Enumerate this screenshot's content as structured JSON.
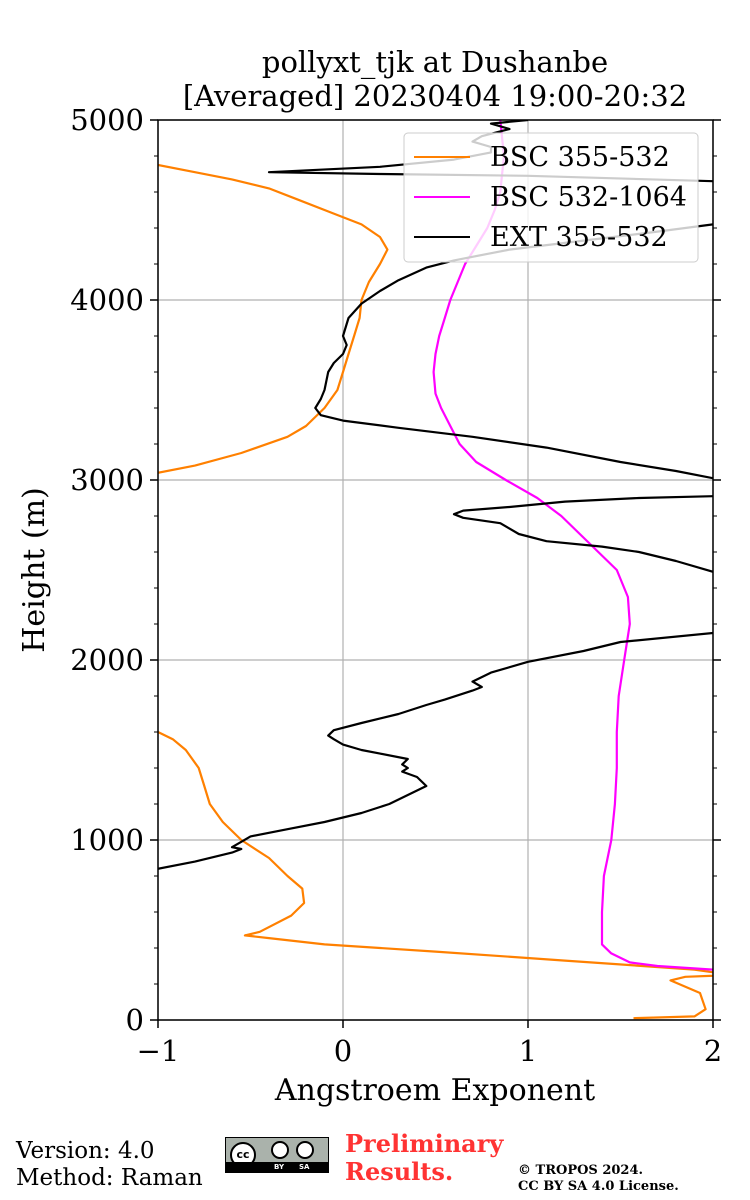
{
  "chart_data": {
    "type": "line",
    "title": "pollyxt_tjk at Dushanbe",
    "subtitle": "[Averaged] 20230404 19:00-20:32",
    "xlabel": "Angstroem Exponent",
    "ylabel": "Height (m)",
    "xlim": [
      -1,
      2
    ],
    "ylim": [
      0,
      5000
    ],
    "xticks": [
      "−1",
      "0",
      "1",
      "2"
    ],
    "yticks": [
      "0",
      "1000",
      "2000",
      "3000",
      "4000",
      "5000"
    ],
    "grid": true,
    "legend_position": "top-right",
    "series": [
      {
        "name": "BSC 355-532",
        "color": "#ff8000",
        "points": [
          [
            1.57,
            10
          ],
          [
            1.9,
            20
          ],
          [
            1.96,
            60
          ],
          [
            1.93,
            150
          ],
          [
            1.77,
            220
          ],
          [
            1.85,
            240
          ],
          [
            2.1,
            250
          ],
          [
            1.9,
            280
          ],
          [
            1.2,
            330
          ],
          [
            0.5,
            380
          ],
          [
            -0.1,
            420
          ],
          [
            -0.4,
            455
          ],
          [
            -0.53,
            470
          ],
          [
            -0.45,
            490
          ],
          [
            -0.28,
            580
          ],
          [
            -0.21,
            650
          ],
          [
            -0.22,
            730
          ],
          [
            -0.3,
            800
          ],
          [
            -0.4,
            900
          ],
          [
            -0.55,
            1000
          ],
          [
            -0.65,
            1100
          ],
          [
            -0.72,
            1200
          ],
          [
            -0.75,
            1300
          ],
          [
            -0.78,
            1400
          ],
          [
            -0.85,
            1500
          ],
          [
            -0.92,
            1560
          ],
          [
            -1.0,
            1600
          ]
        ]
      },
      {
        "name": "BSC 355-532",
        "color": "#ff8000",
        "points": [
          [
            -1.0,
            3040
          ],
          [
            -0.8,
            3080
          ],
          [
            -0.55,
            3150
          ],
          [
            -0.3,
            3240
          ],
          [
            -0.2,
            3300
          ],
          [
            -0.1,
            3400
          ],
          [
            -0.03,
            3500
          ],
          [
            0.0,
            3600
          ],
          [
            0.03,
            3700
          ],
          [
            0.06,
            3800
          ],
          [
            0.09,
            3900
          ],
          [
            0.1,
            4000
          ],
          [
            0.14,
            4100
          ],
          [
            0.2,
            4200
          ],
          [
            0.24,
            4280
          ],
          [
            0.2,
            4350
          ],
          [
            0.1,
            4420
          ],
          [
            -0.05,
            4480
          ],
          [
            -0.25,
            4560
          ],
          [
            -0.4,
            4620
          ],
          [
            -0.6,
            4670
          ],
          [
            -0.8,
            4710
          ],
          [
            -1.0,
            4750
          ]
        ]
      },
      {
        "name": "BSC 532-1064",
        "color": "#ff00ff",
        "points": [
          [
            2.0,
            280
          ],
          [
            1.7,
            300
          ],
          [
            1.55,
            320
          ],
          [
            1.45,
            370
          ],
          [
            1.4,
            420
          ],
          [
            1.4,
            460
          ],
          [
            1.4,
            600
          ],
          [
            1.41,
            800
          ],
          [
            1.45,
            1000
          ],
          [
            1.47,
            1200
          ],
          [
            1.48,
            1400
          ],
          [
            1.48,
            1600
          ],
          [
            1.49,
            1800
          ],
          [
            1.52,
            2000
          ],
          [
            1.55,
            2200
          ],
          [
            1.54,
            2350
          ],
          [
            1.48,
            2500
          ],
          [
            1.38,
            2600
          ],
          [
            1.28,
            2700
          ],
          [
            1.18,
            2800
          ],
          [
            1.05,
            2900
          ],
          [
            0.88,
            3000
          ],
          [
            0.72,
            3100
          ],
          [
            0.63,
            3200
          ],
          [
            0.58,
            3300
          ],
          [
            0.53,
            3400
          ],
          [
            0.5,
            3480
          ],
          [
            0.49,
            3600
          ],
          [
            0.5,
            3700
          ],
          [
            0.52,
            3800
          ],
          [
            0.55,
            3900
          ],
          [
            0.58,
            4000
          ],
          [
            0.62,
            4100
          ],
          [
            0.66,
            4200
          ],
          [
            0.72,
            4300
          ],
          [
            0.78,
            4400
          ],
          [
            0.82,
            4500
          ],
          [
            0.85,
            4600
          ],
          [
            0.86,
            4700
          ],
          [
            0.87,
            4800
          ],
          [
            0.86,
            4900
          ],
          [
            0.85,
            5000
          ]
        ]
      },
      {
        "name": "EXT 355-532",
        "color": "#000000",
        "points": [
          [
            -1.0,
            840
          ],
          [
            -0.8,
            880
          ],
          [
            -0.6,
            930
          ],
          [
            -0.55,
            950
          ],
          [
            -0.6,
            960
          ],
          [
            -0.55,
            990
          ],
          [
            -0.5,
            1020
          ],
          [
            -0.3,
            1060
          ],
          [
            -0.1,
            1100
          ],
          [
            0.1,
            1150
          ],
          [
            0.25,
            1200
          ],
          [
            0.35,
            1250
          ],
          [
            0.45,
            1300
          ],
          [
            0.4,
            1350
          ],
          [
            0.32,
            1380
          ],
          [
            0.35,
            1400
          ],
          [
            0.32,
            1420
          ],
          [
            0.35,
            1450
          ],
          [
            0.2,
            1480
          ],
          [
            0.1,
            1500
          ],
          [
            0.0,
            1530
          ],
          [
            -0.05,
            1560
          ],
          [
            -0.08,
            1580
          ],
          [
            -0.05,
            1610
          ],
          [
            0.1,
            1650
          ],
          [
            0.3,
            1700
          ],
          [
            0.45,
            1750
          ],
          [
            0.55,
            1780
          ],
          [
            0.7,
            1830
          ],
          [
            0.75,
            1850
          ],
          [
            0.7,
            1880
          ],
          [
            0.8,
            1930
          ],
          [
            1.0,
            1990
          ],
          [
            1.3,
            2050
          ],
          [
            1.5,
            2100
          ],
          [
            2.0,
            2150
          ]
        ]
      },
      {
        "name": "EXT 355-532",
        "color": "#000000",
        "points": [
          [
            2.0,
            2490
          ],
          [
            1.8,
            2550
          ],
          [
            1.6,
            2600
          ],
          [
            1.4,
            2630
          ],
          [
            1.1,
            2660
          ],
          [
            0.95,
            2700
          ],
          [
            0.9,
            2730
          ],
          [
            0.85,
            2760
          ],
          [
            0.65,
            2790
          ],
          [
            0.6,
            2810
          ],
          [
            0.65,
            2830
          ],
          [
            0.9,
            2850
          ],
          [
            1.2,
            2880
          ],
          [
            1.6,
            2900
          ],
          [
            2.0,
            2910
          ]
        ]
      },
      {
        "name": "EXT 355-532",
        "color": "#000000",
        "points": [
          [
            2.0,
            3010
          ],
          [
            1.8,
            3050
          ],
          [
            1.5,
            3100
          ],
          [
            1.1,
            3180
          ],
          [
            0.7,
            3240
          ],
          [
            0.3,
            3290
          ],
          [
            0.0,
            3330
          ],
          [
            -0.12,
            3360
          ],
          [
            -0.15,
            3400
          ],
          [
            -0.12,
            3450
          ],
          [
            -0.1,
            3500
          ],
          [
            -0.08,
            3600
          ],
          [
            -0.05,
            3650
          ],
          [
            0.0,
            3700
          ],
          [
            0.02,
            3750
          ],
          [
            0.0,
            3800
          ],
          [
            0.03,
            3900
          ],
          [
            0.1,
            3980
          ],
          [
            0.2,
            4050
          ],
          [
            0.3,
            4110
          ],
          [
            0.45,
            4180
          ],
          [
            0.6,
            4220
          ],
          [
            0.9,
            4280
          ],
          [
            1.3,
            4330
          ],
          [
            1.7,
            4380
          ],
          [
            2.0,
            4420
          ]
        ]
      },
      {
        "name": "EXT 355-532",
        "color": "#000000",
        "points": [
          [
            2.0,
            4660
          ],
          [
            1.0,
            4690
          ],
          [
            0.2,
            4700
          ],
          [
            -0.4,
            4710
          ],
          [
            0.2,
            4740
          ],
          [
            0.6,
            4780
          ],
          [
            0.8,
            4820
          ],
          [
            0.8,
            4850
          ],
          [
            0.7,
            4880
          ],
          [
            0.75,
            4910
          ],
          [
            0.9,
            4950
          ],
          [
            0.8,
            4980
          ],
          [
            1.0,
            5000
          ]
        ]
      }
    ],
    "legend": [
      {
        "label": "BSC 355-532",
        "color": "#ff8000"
      },
      {
        "label": "BSC 532-1064",
        "color": "#ff00ff"
      },
      {
        "label": "EXT 355-532",
        "color": "#000000"
      }
    ]
  },
  "footer": {
    "version": "Version: 4.0",
    "method": "Method: Raman",
    "preliminary_line1": "Preliminary",
    "preliminary_line2": "Results.",
    "copyright_line1": "© TROPOS 2024.",
    "copyright_line2": "CC BY SA 4.0 License.",
    "cc_by": "BY",
    "cc_sa": "SA",
    "cc_mark": "cc"
  }
}
